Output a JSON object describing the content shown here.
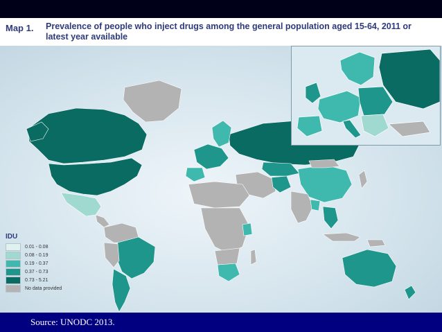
{
  "header": {
    "map_label": "Map 1.",
    "title": "Prevalence of people who inject drugs among the general population aged 15-64, 2011 or latest year available"
  },
  "legend": {
    "title": "IDU",
    "items": [
      {
        "label": "0.01 - 0.08",
        "color": "#dff2ef"
      },
      {
        "label": "0.08 - 0.19",
        "color": "#9fd9cf"
      },
      {
        "label": "0.19 - 0.37",
        "color": "#3fb9ad"
      },
      {
        "label": "0.37 - 0.73",
        "color": "#1f968c"
      },
      {
        "label": "0.73 - 5.21",
        "color": "#0a6b62"
      },
      {
        "label": "No data provided",
        "color": "#b3b3b3"
      }
    ]
  },
  "footer": {
    "source": "Source: UNODC 2013."
  },
  "colors": {
    "top_bar": "#000018",
    "footer_bg": "#000080",
    "ocean": "#d7e6ef",
    "title_text": "#2e3a7a"
  }
}
